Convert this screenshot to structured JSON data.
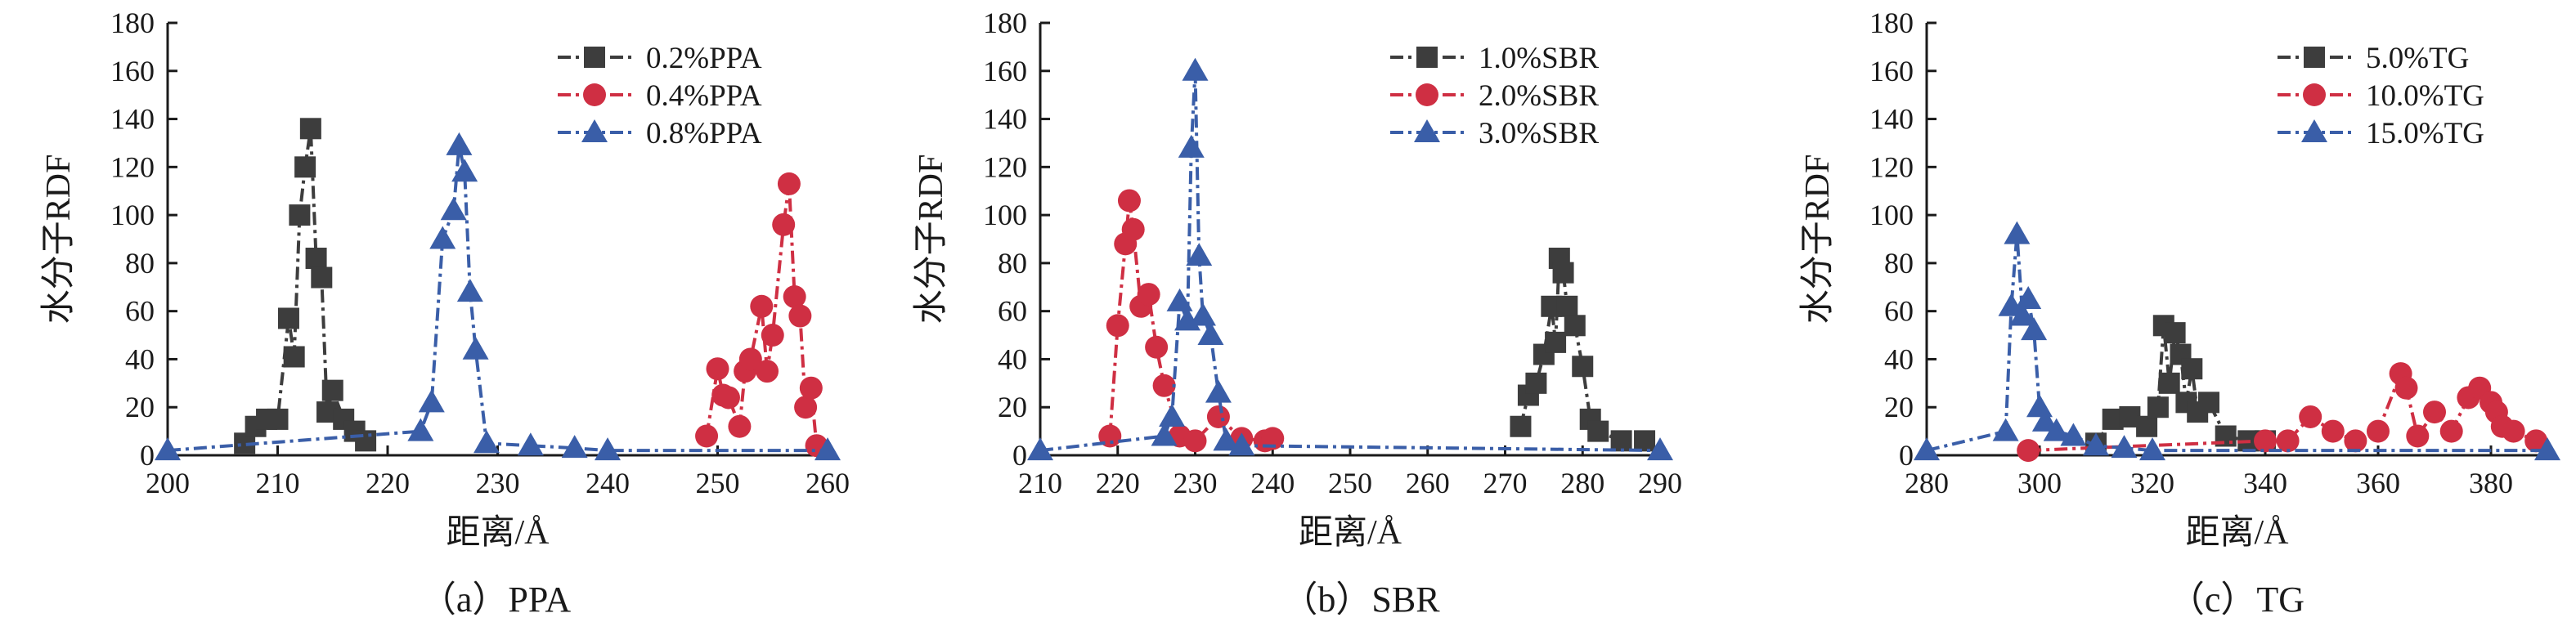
{
  "figure": {
    "captions": [
      "（a）PPA",
      "（b）SBR",
      "（c）TG"
    ]
  },
  "colors": {
    "series1": "#3d3d3d",
    "series2": "#cf2f43",
    "series3": "#3a5ea8",
    "axis": "#1a1a1a"
  },
  "chart_data": [
    {
      "type": "line",
      "xlabel": "距离/Å",
      "ylabel": "水分子RDF",
      "xlim": [
        200,
        260
      ],
      "ylim": [
        0,
        180
      ],
      "xticks": [
        200,
        210,
        220,
        230,
        240,
        250,
        260
      ],
      "yticks": [
        0,
        20,
        40,
        60,
        80,
        100,
        120,
        140,
        160,
        180
      ],
      "legend_position": "top-right",
      "series": [
        {
          "name": "0.2%PPA",
          "marker": "square",
          "color": "#3d3d3d",
          "x": [
            207,
            208,
            209,
            210,
            211,
            211.5,
            212,
            212.5,
            213,
            213.5,
            214,
            214.5,
            215,
            216,
            217,
            218
          ],
          "y": [
            5,
            12,
            15,
            15,
            57,
            41,
            100,
            120,
            136,
            82,
            74,
            18,
            27,
            15,
            10,
            6
          ]
        },
        {
          "name": "0.4%PPA",
          "marker": "circle",
          "color": "#cf2f43",
          "x": [
            249,
            250,
            250.5,
            251,
            252,
            252.5,
            253,
            254,
            254.5,
            255,
            256,
            256.5,
            257,
            257.5,
            258,
            258.5,
            259
          ],
          "y": [
            8,
            36,
            25,
            24,
            12,
            35,
            40,
            62,
            35,
            50,
            96,
            113,
            66,
            58,
            20,
            28,
            4
          ]
        },
        {
          "name": "0.8%PPA",
          "marker": "triangle",
          "color": "#3a5ea8",
          "x": [
            200,
            223,
            224,
            225,
            226,
            226.5,
            227,
            227.5,
            228,
            229,
            233,
            237,
            240,
            260
          ],
          "y": [
            2,
            10,
            22,
            90,
            102,
            129,
            118,
            68,
            44,
            5,
            4,
            3,
            2,
            2
          ]
        }
      ]
    },
    {
      "type": "line",
      "xlabel": "距离/Å",
      "ylabel": "水分子RDF",
      "xlim": [
        210,
        290
      ],
      "ylim": [
        0,
        180
      ],
      "xticks": [
        210,
        220,
        230,
        240,
        250,
        260,
        270,
        280,
        290
      ],
      "yticks": [
        0,
        20,
        40,
        60,
        80,
        100,
        120,
        140,
        160,
        180
      ],
      "legend_position": "top-right",
      "series": [
        {
          "name": "1.0%SBR",
          "marker": "square",
          "color": "#3d3d3d",
          "x": [
            272,
            273,
            274,
            275,
            276,
            276.5,
            277,
            277.5,
            278,
            279,
            280,
            281,
            282,
            285,
            288
          ],
          "y": [
            12,
            25,
            30,
            42,
            62,
            47,
            82,
            76,
            62,
            54,
            37,
            15,
            10,
            6,
            6
          ]
        },
        {
          "name": "2.0%SBR",
          "marker": "circle",
          "color": "#cf2f43",
          "x": [
            219,
            220,
            221,
            221.5,
            222,
            223,
            224,
            225,
            226,
            228,
            230,
            233,
            236,
            239,
            240
          ],
          "y": [
            8,
            54,
            88,
            106,
            94,
            62,
            67,
            45,
            29,
            8,
            6,
            16,
            7,
            6,
            7
          ]
        },
        {
          "name": "3.0%SBR",
          "marker": "triangle",
          "color": "#3a5ea8",
          "x": [
            210,
            226,
            227,
            228,
            229,
            229.5,
            230,
            230.5,
            231,
            232,
            233,
            234,
            236,
            290
          ],
          "y": [
            2,
            8,
            16,
            64,
            56,
            128,
            160,
            83,
            58,
            50,
            26,
            6,
            4,
            2
          ]
        }
      ]
    },
    {
      "type": "line",
      "xlabel": "距离/Å",
      "ylabel": "水分子RDF",
      "xlim": [
        280,
        390
      ],
      "ylim": [
        0,
        180
      ],
      "xticks": [
        280,
        300,
        320,
        340,
        360,
        380
      ],
      "yticks": [
        0,
        20,
        40,
        60,
        80,
        100,
        120,
        140,
        160,
        180
      ],
      "legend_position": "top-right",
      "series": [
        {
          "name": "5.0%TG",
          "marker": "square",
          "color": "#3d3d3d",
          "x": [
            310,
            313,
            316,
            319,
            321,
            322,
            323,
            324,
            325,
            326,
            327,
            328,
            330,
            333,
            337,
            340
          ],
          "y": [
            5,
            15,
            16,
            12,
            20,
            54,
            30,
            51,
            42,
            22,
            36,
            18,
            22,
            8,
            6,
            6
          ]
        },
        {
          "name": "10.0%TG",
          "marker": "circle",
          "color": "#cf2f43",
          "x": [
            298,
            340,
            344,
            348,
            352,
            356,
            360,
            364,
            365,
            367,
            370,
            373,
            376,
            378,
            380,
            381,
            382,
            384,
            388
          ],
          "y": [
            2,
            6,
            6,
            16,
            10,
            6,
            10,
            34,
            28,
            8,
            18,
            10,
            24,
            28,
            22,
            18,
            12,
            10,
            6
          ]
        },
        {
          "name": "15.0%TG",
          "marker": "triangle",
          "color": "#3a5ea8",
          "x": [
            280,
            294,
            295,
            296,
            297,
            298,
            299,
            300,
            301,
            303,
            306,
            310,
            315,
            320,
            390
          ],
          "y": [
            2,
            10,
            62,
            92,
            58,
            65,
            52,
            20,
            14,
            10,
            8,
            4,
            3,
            2,
            2
          ]
        }
      ]
    }
  ]
}
